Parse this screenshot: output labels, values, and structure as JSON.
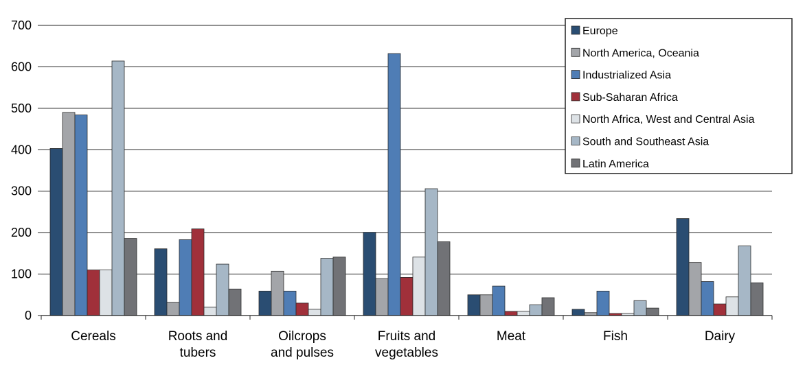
{
  "chart_data": {
    "type": "bar",
    "categories": [
      [
        "Cereals"
      ],
      [
        "Roots and",
        "tubers"
      ],
      [
        "Oilcrops",
        "and pulses"
      ],
      [
        "Fruits and",
        "vegetables"
      ],
      [
        "Meat"
      ],
      [
        "Fish"
      ],
      [
        "Dairy"
      ]
    ],
    "series": [
      {
        "name": "Europe",
        "color": "#2a4d72",
        "values": [
          403,
          161,
          59,
          201,
          50,
          15,
          234
        ]
      },
      {
        "name": "North America, Oceania",
        "color": "#a3a5a9",
        "values": [
          490,
          32,
          107,
          89,
          50,
          7,
          128
        ]
      },
      {
        "name": "Industrialized Asia",
        "color": "#4f7db5",
        "values": [
          484,
          183,
          59,
          632,
          71,
          59,
          82
        ]
      },
      {
        "name": "Sub-Saharan Africa",
        "color": "#a0303a",
        "values": [
          110,
          209,
          30,
          92,
          10,
          5,
          28
        ]
      },
      {
        "name": "North Africa, West and Central Asia",
        "color": "#dde2e6",
        "values": [
          110,
          20,
          15,
          141,
          10,
          5,
          45
        ]
      },
      {
        "name": "South and Southeast Asia",
        "color": "#a6b7c6",
        "values": [
          614,
          124,
          138,
          306,
          26,
          36,
          168
        ]
      },
      {
        "name": "Latin America",
        "color": "#717276",
        "values": [
          186,
          64,
          141,
          178,
          43,
          18,
          79
        ]
      }
    ],
    "yticks": [
      0,
      100,
      200,
      300,
      400,
      500,
      600,
      700
    ],
    "ylim": [
      0,
      700
    ],
    "grid": true,
    "legend_position": "top-right",
    "title": "",
    "xlabel": "",
    "ylabel": ""
  }
}
